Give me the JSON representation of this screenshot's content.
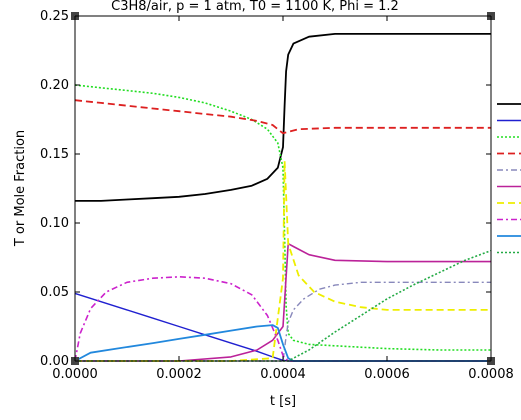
{
  "chart_data": {
    "type": "line",
    "title": "C3H8/air, p = 1 atm, T0 = 1100 K, Phi = 1.2",
    "xlabel": "t [s]",
    "ylabel": "T or Mole Fraction",
    "xlim": [
      0,
      0.0008
    ],
    "ylim": [
      0,
      0.25
    ],
    "x_ticks": [
      "0.0000",
      "0.0002",
      "0.0004",
      "0.0006",
      "0.0008"
    ],
    "y_ticks": [
      "0.00",
      "0.05",
      "0.10",
      "0.15",
      "0.20",
      "0.25"
    ],
    "grid": false,
    "legend": "right",
    "series": [
      {
        "color": "#000000",
        "dash": "solid",
        "width": 1.8,
        "points": [
          [
            0,
            0.116
          ],
          [
            5e-05,
            0.116
          ],
          [
            0.0001,
            0.117
          ],
          [
            0.00015,
            0.118
          ],
          [
            0.0002,
            0.119
          ],
          [
            0.00025,
            0.121
          ],
          [
            0.0003,
            0.124
          ],
          [
            0.00034,
            0.127
          ],
          [
            0.00037,
            0.132
          ],
          [
            0.00039,
            0.14
          ],
          [
            0.0004,
            0.155
          ],
          [
            0.000403,
            0.185
          ],
          [
            0.000406,
            0.21
          ],
          [
            0.00041,
            0.222
          ],
          [
            0.00042,
            0.23
          ],
          [
            0.00045,
            0.235
          ],
          [
            0.0005,
            0.237
          ],
          [
            0.0006,
            0.237
          ],
          [
            0.0007,
            0.237
          ],
          [
            0.0008,
            0.237
          ]
        ]
      },
      {
        "color": "#2020d0",
        "dash": "solid",
        "width": 1.4,
        "points": [
          [
            0,
            0.049
          ],
          [
            5e-05,
            0.043
          ],
          [
            0.0001,
            0.037
          ],
          [
            0.00015,
            0.031
          ],
          [
            0.0002,
            0.025
          ],
          [
            0.00025,
            0.019
          ],
          [
            0.0003,
            0.013
          ],
          [
            0.00035,
            0.007
          ],
          [
            0.00038,
            0.003
          ],
          [
            0.0004,
            0.0005
          ],
          [
            0.00041,
            0
          ],
          [
            0.0005,
            0
          ],
          [
            0.0006,
            0
          ],
          [
            0.0007,
            0
          ],
          [
            0.0008,
            0
          ]
        ]
      },
      {
        "color": "#22dd22",
        "dash": "2,2",
        "width": 1.6,
        "points": [
          [
            0,
            0.2
          ],
          [
            5e-05,
            0.198
          ],
          [
            0.0001,
            0.196
          ],
          [
            0.00015,
            0.194
          ],
          [
            0.0002,
            0.191
          ],
          [
            0.00025,
            0.187
          ],
          [
            0.0003,
            0.181
          ],
          [
            0.00034,
            0.175
          ],
          [
            0.00037,
            0.168
          ],
          [
            0.00039,
            0.158
          ],
          [
            0.0004,
            0.14
          ],
          [
            0.000403,
            0.09
          ],
          [
            0.000406,
            0.04
          ],
          [
            0.00041,
            0.02
          ],
          [
            0.00042,
            0.015
          ],
          [
            0.00045,
            0.012
          ],
          [
            0.0005,
            0.011
          ],
          [
            0.0006,
            0.009
          ],
          [
            0.0007,
            0.008
          ],
          [
            0.0008,
            0.008
          ]
        ]
      },
      {
        "color": "#dd2020",
        "dash": "7,4",
        "width": 1.8,
        "points": [
          [
            0,
            0.189
          ],
          [
            5e-05,
            0.187
          ],
          [
            0.0001,
            0.185
          ],
          [
            0.00015,
            0.183
          ],
          [
            0.0002,
            0.181
          ],
          [
            0.00025,
            0.179
          ],
          [
            0.0003,
            0.177
          ],
          [
            0.00035,
            0.174
          ],
          [
            0.00038,
            0.171
          ],
          [
            0.0004,
            0.165
          ],
          [
            0.00041,
            0.166
          ],
          [
            0.00043,
            0.168
          ],
          [
            0.0005,
            0.169
          ],
          [
            0.0006,
            0.169
          ],
          [
            0.0007,
            0.169
          ],
          [
            0.0008,
            0.169
          ]
        ]
      },
      {
        "color": "#8888bb",
        "dash": "6,3,2,3",
        "width": 1.4,
        "points": [
          [
            0,
            0
          ],
          [
            0.0003,
            0
          ],
          [
            0.0004,
            0
          ],
          [
            0.000405,
            0.015
          ],
          [
            0.00041,
            0.028
          ],
          [
            0.00042,
            0.037
          ],
          [
            0.00044,
            0.045
          ],
          [
            0.00047,
            0.052
          ],
          [
            0.0005,
            0.055
          ],
          [
            0.00055,
            0.057
          ],
          [
            0.0006,
            0.057
          ],
          [
            0.0007,
            0.057
          ],
          [
            0.0008,
            0.057
          ]
        ]
      },
      {
        "color": "#bb2299",
        "dash": "solid",
        "width": 1.6,
        "points": [
          [
            0,
            0
          ],
          [
            0.0002,
            0
          ],
          [
            0.0003,
            0.003
          ],
          [
            0.00035,
            0.008
          ],
          [
            0.00038,
            0.015
          ],
          [
            0.0004,
            0.025
          ],
          [
            0.000405,
            0.055
          ],
          [
            0.00041,
            0.085
          ],
          [
            0.00042,
            0.083
          ],
          [
            0.00045,
            0.077
          ],
          [
            0.0005,
            0.073
          ],
          [
            0.0006,
            0.072
          ],
          [
            0.0007,
            0.072
          ],
          [
            0.0008,
            0.072
          ]
        ]
      },
      {
        "color": "#eeee00",
        "dash": "7,4",
        "width": 1.8,
        "points": [
          [
            0,
            0
          ],
          [
            0.0003,
            0
          ],
          [
            0.00038,
            0.002
          ],
          [
            0.0004,
            0.06
          ],
          [
            0.000403,
            0.145
          ],
          [
            0.000406,
            0.12
          ],
          [
            0.00041,
            0.085
          ],
          [
            0.00043,
            0.062
          ],
          [
            0.00046,
            0.05
          ],
          [
            0.0005,
            0.043
          ],
          [
            0.00055,
            0.039
          ],
          [
            0.0006,
            0.037
          ],
          [
            0.0007,
            0.037
          ],
          [
            0.0008,
            0.037
          ]
        ]
      },
      {
        "color": "#cc22cc",
        "dash": "6,3,2,3",
        "width": 1.6,
        "points": [
          [
            0,
            0
          ],
          [
            1e-05,
            0.02
          ],
          [
            3e-05,
            0.038
          ],
          [
            6e-05,
            0.05
          ],
          [
            0.0001,
            0.057
          ],
          [
            0.00015,
            0.06
          ],
          [
            0.0002,
            0.061
          ],
          [
            0.00025,
            0.06
          ],
          [
            0.0003,
            0.056
          ],
          [
            0.00034,
            0.048
          ],
          [
            0.00037,
            0.033
          ],
          [
            0.00039,
            0.015
          ],
          [
            0.0004,
            0.004
          ],
          [
            0.00041,
            0
          ],
          [
            0.0005,
            0
          ],
          [
            0.0008,
            0
          ]
        ]
      },
      {
        "color": "#2288dd",
        "dash": "solid",
        "width": 1.8,
        "points": [
          [
            0,
            0
          ],
          [
            3e-05,
            0.006
          ],
          [
            8e-05,
            0.009
          ],
          [
            0.00015,
            0.013
          ],
          [
            0.0002,
            0.016
          ],
          [
            0.00025,
            0.019
          ],
          [
            0.0003,
            0.022
          ],
          [
            0.00035,
            0.025
          ],
          [
            0.00038,
            0.026
          ],
          [
            0.00039,
            0.024
          ],
          [
            0.0004,
            0.012
          ],
          [
            0.00041,
            0.002
          ],
          [
            0.00042,
            0
          ],
          [
            0.0005,
            0
          ],
          [
            0.0008,
            0
          ]
        ]
      },
      {
        "color": "#22aa44",
        "dash": "2,2",
        "width": 1.6,
        "points": [
          [
            0,
            0
          ],
          [
            0.0004,
            0
          ],
          [
            0.00041,
            0
          ],
          [
            0.00042,
            0.002
          ],
          [
            0.00045,
            0.008
          ],
          [
            0.0005,
            0.021
          ],
          [
            0.00055,
            0.033
          ],
          [
            0.0006,
            0.045
          ],
          [
            0.00065,
            0.055
          ],
          [
            0.0007,
            0.064
          ],
          [
            0.00075,
            0.073
          ],
          [
            0.0008,
            0.08
          ]
        ]
      }
    ]
  }
}
